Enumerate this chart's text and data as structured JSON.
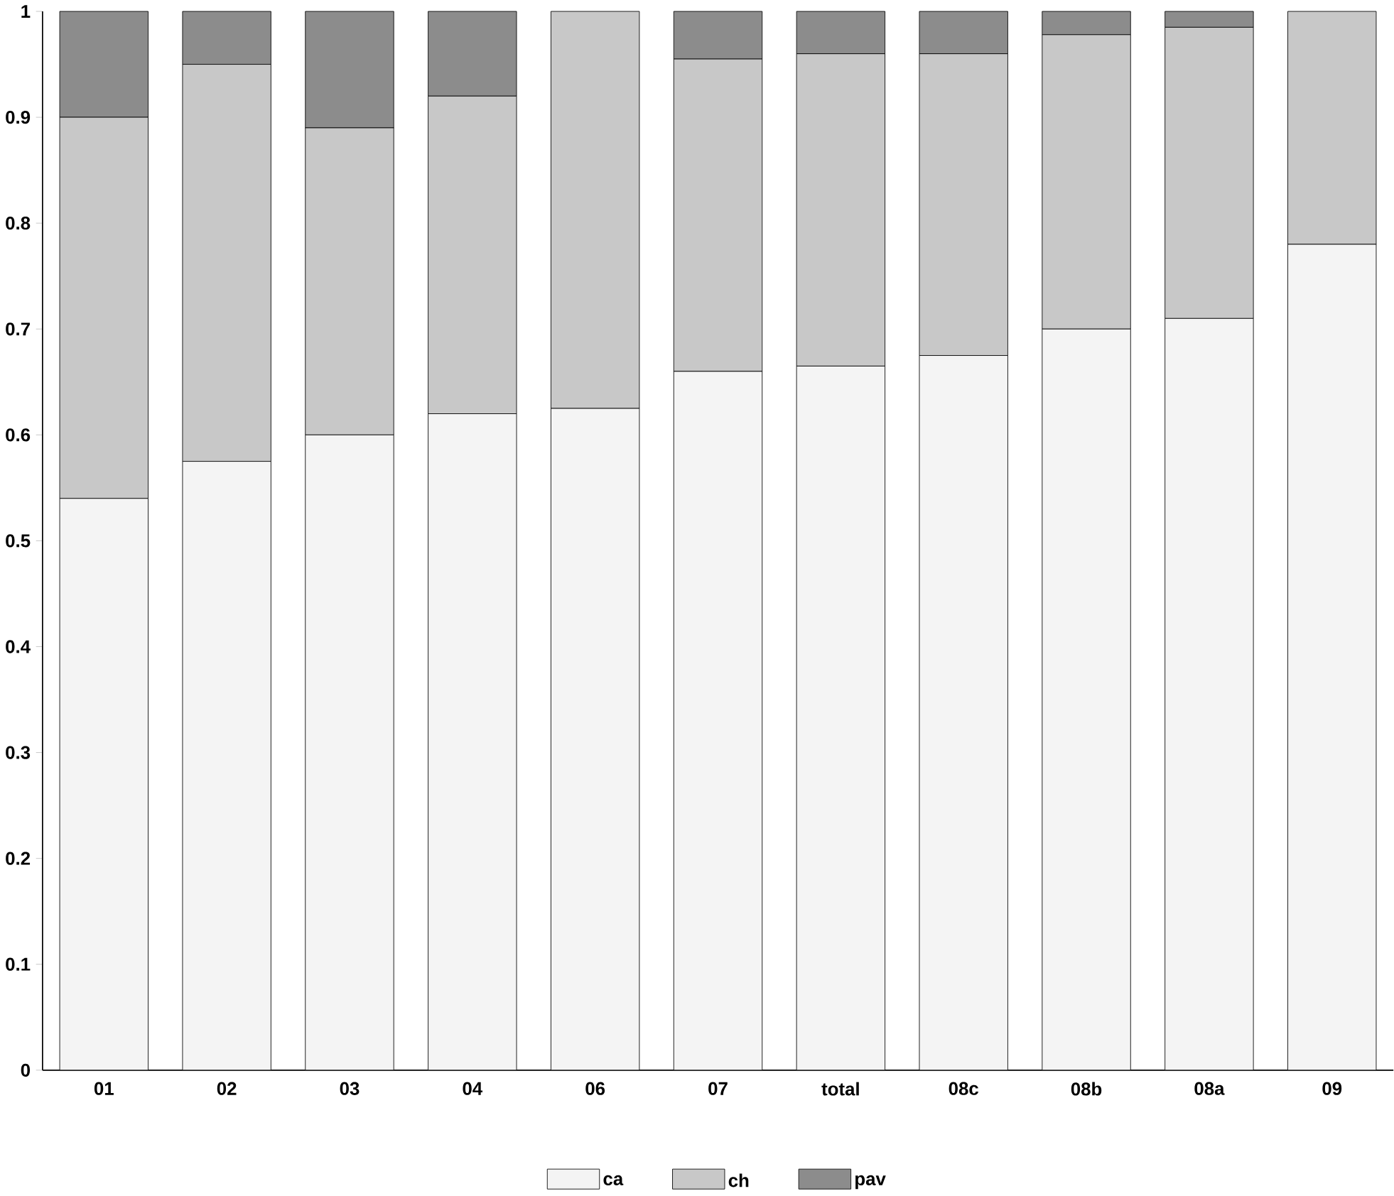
{
  "chart_data": {
    "type": "bar",
    "stacked": true,
    "categories": [
      "01",
      "02",
      "03",
      "04",
      "06",
      "07",
      "total",
      "08c",
      "08b",
      "08a",
      "09"
    ],
    "series": [
      {
        "name": "ca",
        "color": "#f4f4f4",
        "values": [
          0.54,
          0.575,
          0.6,
          0.62,
          0.625,
          0.66,
          0.665,
          0.675,
          0.7,
          0.71,
          0.78
        ]
      },
      {
        "name": "ch",
        "color": "#c8c8c8",
        "values": [
          0.36,
          0.375,
          0.29,
          0.3,
          0.375,
          0.295,
          0.295,
          0.285,
          0.278,
          0.275,
          0.22
        ]
      },
      {
        "name": "pav",
        "color": "#8c8c8c",
        "values": [
          0.1,
          0.05,
          0.11,
          0.08,
          0,
          0.045,
          0.04,
          0.04,
          0.022,
          0.015,
          0
        ]
      }
    ],
    "ylim": [
      0,
      1
    ],
    "yticks": [
      0,
      0.1,
      0.2,
      0.3,
      0.4,
      0.5,
      0.6,
      0.7,
      0.8,
      0.9,
      1
    ],
    "legend": "bottom",
    "grid": false
  }
}
